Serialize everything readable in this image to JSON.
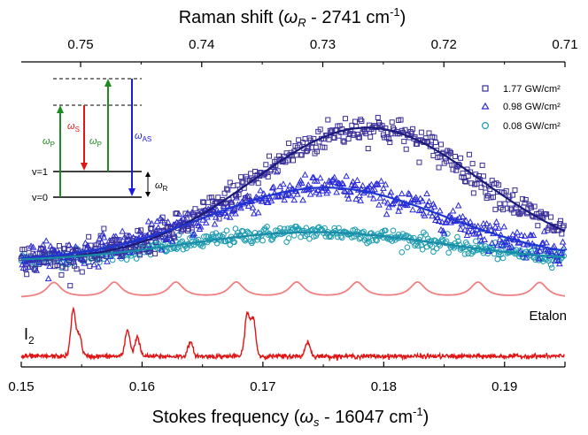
{
  "chart_data": {
    "type": "scatter",
    "top_axis": {
      "title_prefix": "Raman shift (",
      "title_symbol": "ω",
      "title_sub": "R",
      "title_suffix": " - 2741 cm",
      "title_sup": "-1",
      "title_close": ")",
      "ticks": [
        0.75,
        0.74,
        0.73,
        0.72,
        0.71
      ],
      "tick_labels": [
        "0.75",
        "0.74",
        "0.73",
        "0.72",
        "0.71"
      ],
      "range": [
        0.7549,
        0.71
      ],
      "direction": "decreasing"
    },
    "bottom_axis": {
      "title_prefix": "Stokes frequency (",
      "title_symbol": "ω",
      "title_sub": "s",
      "title_suffix": " - 16047 cm",
      "title_sup": "-1",
      "title_close": ")",
      "ticks": [
        0.15,
        0.16,
        0.17,
        0.18,
        0.19
      ],
      "tick_labels": [
        "0.15",
        "0.16",
        "0.17",
        "0.18",
        "0.19"
      ],
      "range": [
        0.15,
        0.195
      ]
    },
    "grid": false,
    "legend_position": "top-right",
    "series": [
      {
        "name": "1.77 GW/cm²",
        "marker": "square",
        "color": "#3a2f9a",
        "fit_color": "#1a1a7a",
        "fit": {
          "baseline": 0.02,
          "amplitude": 1.0,
          "center": 0.1786,
          "sigma": 0.0094,
          "slope": 0.6
        }
      },
      {
        "name": "0.98 GW/cm²",
        "marker": "triangle",
        "color": "#2a2ad8",
        "fit_color": "#1f35d0",
        "fit": {
          "baseline": 0.02,
          "amplitude": 0.55,
          "center": 0.1752,
          "sigma": 0.0098,
          "slope": 0.4
        }
      },
      {
        "name": "0.08 GW/cm²",
        "marker": "circle",
        "color": "#1a9bb0",
        "fit_color": "#1a8ca8",
        "fit": {
          "baseline": 0.015,
          "amplitude": 0.22,
          "center": 0.1742,
          "sigma": 0.0105,
          "slope": 0.2
        }
      }
    ],
    "etalon": {
      "label": "Etalon",
      "color": "#f08080",
      "peaks_x": [
        0.1527,
        0.1577,
        0.1628,
        0.1678,
        0.1728,
        0.1778,
        0.1828,
        0.1878,
        0.1929
      ]
    },
    "i2": {
      "label": "I",
      "label_sub": "2",
      "color": "#e01515",
      "peaks": [
        {
          "x": 0.1543,
          "h": 1.0
        },
        {
          "x": 0.1548,
          "h": 0.45
        },
        {
          "x": 0.1588,
          "h": 0.58
        },
        {
          "x": 0.1596,
          "h": 0.42
        },
        {
          "x": 0.164,
          "h": 0.3
        },
        {
          "x": 0.1687,
          "h": 0.92
        },
        {
          "x": 0.1692,
          "h": 0.82
        },
        {
          "x": 0.1737,
          "h": 0.32
        }
      ]
    },
    "inset": {
      "labels": {
        "wp1": "ω",
        "wp1_sub": "P",
        "ws": "ω",
        "ws_sub": "S",
        "wp2": "ω",
        "wp2_sub": "P",
        "was": "ω",
        "was_sub": "AS",
        "wr": "ω",
        "wr_sub": "R",
        "v1": "v=1",
        "v0": "v=0"
      },
      "colors": {
        "pump": "#1f8a1f",
        "stokes": "#e01515",
        "antistokes": "#1a1ae0",
        "level": "#000000"
      }
    }
  }
}
